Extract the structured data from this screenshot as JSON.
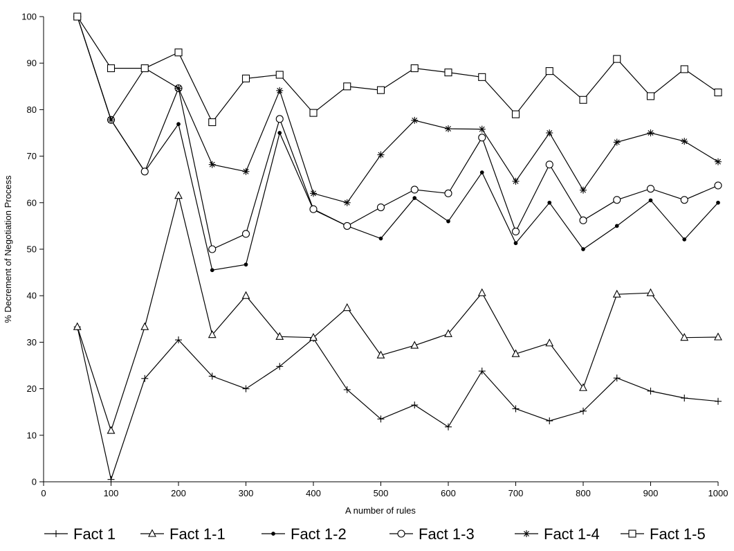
{
  "chart_data": {
    "type": "line",
    "title": "",
    "xlabel": "A number of rules",
    "ylabel": "% Decrement of Negotiation Process",
    "xlim": [
      0,
      1000
    ],
    "ylim": [
      0,
      100
    ],
    "xticks": [
      0,
      100,
      200,
      300,
      400,
      500,
      600,
      700,
      800,
      900,
      1000
    ],
    "yticks": [
      0,
      10,
      20,
      30,
      40,
      50,
      60,
      70,
      80,
      90,
      100
    ],
    "grid": false,
    "legend_position": "bottom",
    "x": [
      50,
      100,
      150,
      200,
      250,
      300,
      350,
      400,
      450,
      500,
      550,
      600,
      650,
      700,
      750,
      800,
      850,
      900,
      950,
      1000
    ],
    "series": [
      {
        "name": "Fact 1",
        "marker": "plus",
        "values": [
          33.3,
          0.5,
          22.2,
          30.5,
          22.7,
          20,
          24.8,
          30.8,
          19.8,
          13.5,
          16.5,
          11.8,
          23.8,
          15.7,
          13.1,
          15.2,
          22.3,
          19.5,
          18,
          17.3
        ]
      },
      {
        "name": "Fact 1-1",
        "marker": "triangle",
        "values": [
          33.3,
          11,
          33.3,
          61.5,
          31.6,
          40,
          31.2,
          31,
          37.4,
          27.2,
          29.3,
          31.8,
          40.6,
          27.5,
          29.8,
          20.2,
          40.3,
          40.6,
          31,
          31.1
        ]
      },
      {
        "name": "Fact 1-2",
        "marker": "dot",
        "values": [
          100,
          77.8,
          66.7,
          76.9,
          45.5,
          46.7,
          75,
          58.5,
          55,
          52.3,
          61,
          56,
          66.5,
          51.3,
          60,
          50,
          55,
          60.5,
          52.1,
          60
        ]
      },
      {
        "name": "Fact 1-3",
        "marker": "circle",
        "values": [
          100,
          77.8,
          66.7,
          84.6,
          50,
          53.3,
          78,
          58.6,
          55,
          59,
          62.8,
          62,
          74,
          53.8,
          68.2,
          56.2,
          60.6,
          63,
          60.6,
          63.7
        ]
      },
      {
        "name": "Fact 1-4",
        "marker": "star",
        "values": [
          100,
          77.8,
          88.9,
          84.6,
          68.2,
          66.7,
          84.1,
          62,
          60,
          70.3,
          77.7,
          75.9,
          75.8,
          64.6,
          75,
          62.7,
          73,
          75,
          73.2,
          68.8
        ]
      },
      {
        "name": "Fact 1-5",
        "marker": "square",
        "values": [
          100,
          88.9,
          88.9,
          92.3,
          77.3,
          86.7,
          87.5,
          79.3,
          85,
          84.2,
          88.9,
          88,
          87,
          79,
          88.3,
          82.1,
          90.9,
          82.9,
          88.7,
          83.7
        ]
      }
    ]
  }
}
